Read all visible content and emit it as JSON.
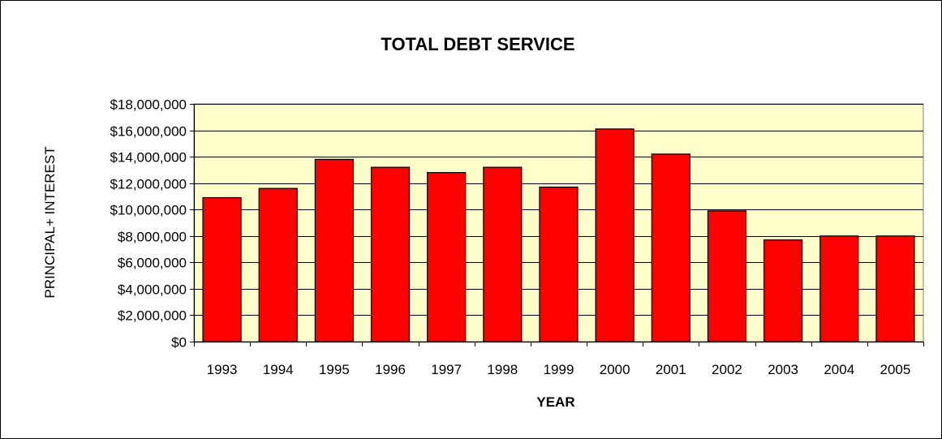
{
  "chart_data": {
    "type": "bar",
    "title": "TOTAL DEBT SERVICE",
    "xlabel": "YEAR",
    "ylabel": "PRINCIPAL+ INTEREST",
    "categories": [
      "1993",
      "1994",
      "1995",
      "1996",
      "1997",
      "1998",
      "1999",
      "2000",
      "2001",
      "2002",
      "2003",
      "2004",
      "2005"
    ],
    "values": [
      10900000,
      11600000,
      13800000,
      13200000,
      12800000,
      13200000,
      11700000,
      16100000,
      14200000,
      9900000,
      7700000,
      8000000,
      8000000
    ],
    "ylim": [
      0,
      18000000
    ],
    "yticks": [
      0,
      2000000,
      4000000,
      6000000,
      8000000,
      10000000,
      12000000,
      14000000,
      16000000,
      18000000
    ],
    "ytick_labels": [
      "$0",
      "$2,000,000",
      "$4,000,000",
      "$6,000,000",
      "$8,000,000",
      "$10,000,000",
      "$12,000,000",
      "$14,000,000",
      "$16,000,000",
      "$18,000,000"
    ],
    "grid": true,
    "legend": "none",
    "colors": {
      "bar": "#ff0000",
      "plot_background": "#ffffcc",
      "gridline": "#000000"
    }
  }
}
